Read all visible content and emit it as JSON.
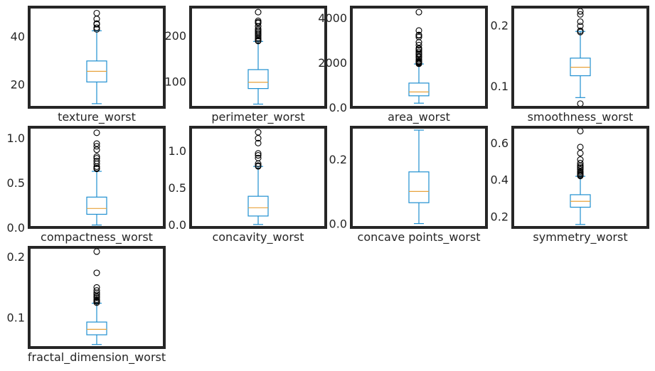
{
  "chart_data": [
    {
      "type": "box",
      "xlabel": "texture_worst",
      "ylim": [
        10.5,
        52
      ],
      "yticks": [
        20,
        40
      ],
      "box": {
        "whisker_low": 12,
        "q1": 21,
        "median": 25.4,
        "q3": 29.7,
        "whisker_high": 42.2
      },
      "outliers": [
        42.8,
        43.5,
        44.9,
        45.2,
        47.1,
        49.5
      ]
    },
    {
      "type": "box",
      "xlabel": "perimeter_worst",
      "ylim": [
        43,
        262
      ],
      "yticks": [
        100,
        200
      ],
      "box": {
        "whisker_low": 50,
        "q1": 84,
        "median": 97.7,
        "q3": 125.4,
        "whisker_high": 187
      },
      "outliers": [
        188,
        189,
        192,
        195,
        199,
        202,
        205,
        208,
        211,
        214,
        220,
        227,
        229,
        232,
        251
      ]
    },
    {
      "type": "box",
      "xlabel": "area_worst",
      "ylim": [
        0,
        4480
      ],
      "yticks": [
        0,
        2000,
        4000
      ],
      "box": {
        "whisker_low": 185,
        "q1": 515,
        "median": 686,
        "q3": 1084,
        "whisker_high": 1937
      },
      "outliers": [
        1946,
        1972,
        2003,
        2027,
        2053,
        2081,
        2145,
        2227,
        2281,
        2360,
        2395,
        2477,
        2562,
        2615,
        2642,
        2782,
        2906,
        3143,
        3216,
        3234,
        3432,
        4254
      ]
    },
    {
      "type": "box",
      "xlabel": "smoothness_worst",
      "ylim": [
        0.065,
        0.23
      ],
      "yticks": [
        0.1,
        0.2
      ],
      "box": {
        "whisker_low": 0.081,
        "q1": 0.117,
        "median": 0.131,
        "q3": 0.146,
        "whisker_high": 0.19
      },
      "outliers": [
        0.071,
        0.189,
        0.191,
        0.199,
        0.206,
        0.218,
        0.223
      ]
    },
    {
      "type": "box",
      "xlabel": "compactness_worst",
      "ylim": [
        0,
        1.12
      ],
      "yticks": [
        0.0,
        0.5,
        1.0
      ],
      "box": {
        "whisker_low": 0.027,
        "q1": 0.147,
        "median": 0.212,
        "q3": 0.339,
        "whisker_high": 0.627
      },
      "outliers": [
        0.655,
        0.664,
        0.68,
        0.712,
        0.742,
        0.773,
        0.792,
        0.868,
        0.907,
        0.937,
        1.058
      ]
    },
    {
      "type": "box",
      "xlabel": "concavity_worst",
      "ylim": [
        -0.04,
        1.32
      ],
      "yticks": [
        0.0,
        0.5,
        1.0
      ],
      "box": {
        "whisker_low": 0.0,
        "q1": 0.115,
        "median": 0.227,
        "q3": 0.383,
        "whisker_high": 0.788
      },
      "outliers": [
        0.789,
        0.8,
        0.825,
        0.902,
        0.938,
        0.965,
        1.105,
        1.17,
        1.252
      ]
    },
    {
      "type": "box",
      "xlabel": "concave points_worst",
      "ylim": [
        -0.012,
        0.3
      ],
      "yticks": [
        0.0,
        0.2
      ],
      "box": {
        "whisker_low": 0.0,
        "q1": 0.065,
        "median": 0.1,
        "q3": 0.161,
        "whisker_high": 0.291
      },
      "outliers": []
    },
    {
      "type": "box",
      "xlabel": "symmetry_worst",
      "ylim": [
        0.14,
        0.685
      ],
      "yticks": [
        0.2,
        0.4,
        0.6
      ],
      "box": {
        "whisker_low": 0.156,
        "q1": 0.25,
        "median": 0.282,
        "q3": 0.318,
        "whisker_high": 0.418
      },
      "outliers": [
        0.42,
        0.425,
        0.43,
        0.437,
        0.444,
        0.455,
        0.463,
        0.47,
        0.478,
        0.49,
        0.509,
        0.544,
        0.577,
        0.664
      ]
    },
    {
      "type": "box",
      "xlabel": "fractal_dimension_worst",
      "ylim": [
        0.05,
        0.215
      ],
      "yticks": [
        0.1,
        0.2
      ],
      "box": {
        "whisker_low": 0.055,
        "q1": 0.071,
        "median": 0.08,
        "q3": 0.092,
        "whisker_high": 0.123
      },
      "outliers": [
        0.124,
        0.126,
        0.127,
        0.129,
        0.132,
        0.134,
        0.137,
        0.14,
        0.144,
        0.149,
        0.173,
        0.208
      ]
    }
  ],
  "colors": {
    "box": "#1f8fd0",
    "median": "#e8a23c",
    "frame": "#262626",
    "text": "#262626"
  }
}
